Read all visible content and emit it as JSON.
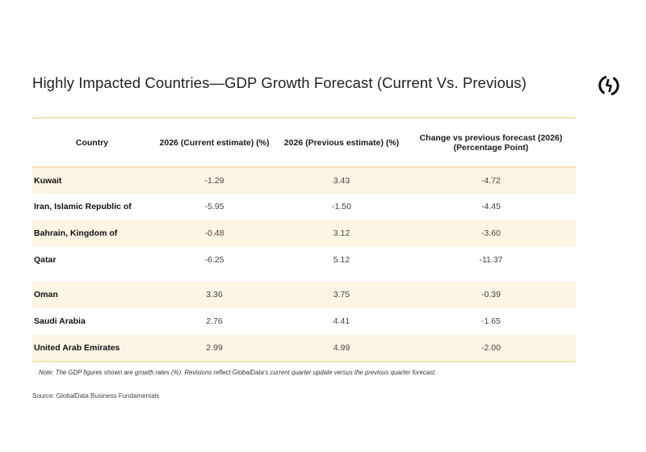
{
  "title": "Highly Impacted Countries—GDP Growth Forecast (Current Vs. Previous)",
  "logo_icon": "globaldata-logo-icon",
  "colors": {
    "header_border": "#f6e3b4",
    "row_shade": "#fcf5e4"
  },
  "table": {
    "headers": [
      "Country",
      "2026 (Current estimate) (%)",
      "2026 (Previous estimate) (%)",
      "Change vs previous forecast (2026)\n(Percentage Point)"
    ],
    "header_change_line1": "Change vs previous forecast (2026)",
    "header_change_line2": "(Percentage Point)",
    "rows": [
      {
        "country": "Kuwait",
        "current": "-1.29",
        "previous": "3.43",
        "change": "-4.72"
      },
      {
        "country": "Iran, Islamic Republic of",
        "current": "-5.95",
        "previous": "-1.50",
        "change": "-4.45"
      },
      {
        "country": "Bahrain, Kingdom of",
        "current": "-0.48",
        "previous": "3.12",
        "change": "-3.60"
      },
      {
        "country": "Qatar",
        "current": "-6.25",
        "previous": "5.12",
        "change": "-11.37"
      },
      {
        "country": "Oman",
        "current": "3.36",
        "previous": "3.75",
        "change": "-0.39"
      },
      {
        "country": "Saudi Arabia",
        "current": "2.76",
        "previous": "4.41",
        "change": "-1.65"
      },
      {
        "country": "United Arab Emirates",
        "current": "2.99",
        "previous": "4.99",
        "change": "-2.00"
      }
    ]
  },
  "note": "Note: The GDP figures shown are growth rates (%). Revisions reflect GlobalData’s current quarter update versus the previous quarter forecast.",
  "source": "Source: GlobalData Business Fundamentals"
}
